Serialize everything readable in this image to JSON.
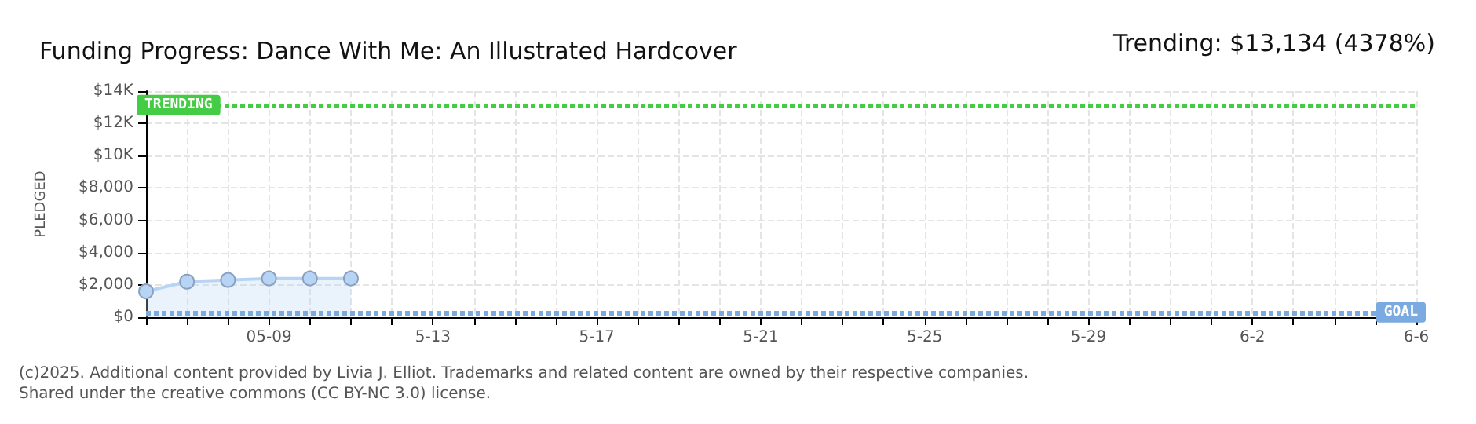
{
  "chart_data": {
    "type": "area",
    "title": "Funding Progress: Dance With Me: An Illustrated Hardcover",
    "ylabel": "PLEDGED",
    "annotations": [
      "Trending: $13,134 (4378%)",
      "(c)2025. Additional content provided by Livia J. Elliot. Trademarks and related content are owned by their respective companies.",
      "Shared under the creative commons (CC BY-NC 3.0) license."
    ],
    "x": [
      "--05-06",
      "--05-07",
      "--05-08",
      "--05-09",
      "--05-10",
      "--05-11"
    ],
    "series": [
      {
        "color": "#b8d4f4",
        "values": [
          1600,
          2200,
          2300,
          2400,
          2400,
          2400
        ]
      }
    ],
    "xlim": [
      "--05-06",
      "--06-06"
    ],
    "xticks": [
      {
        "value": "--05-06",
        "label": null
      },
      {
        "value": "--05-07",
        "label": null
      },
      {
        "value": "--05-08",
        "label": null
      },
      {
        "value": "--05-09",
        "label": "05-09"
      },
      {
        "value": "--05-10",
        "label": null
      },
      {
        "value": "--05-11",
        "label": null
      },
      {
        "value": "--05-12",
        "label": null
      },
      {
        "value": "--05-13",
        "label": "5-13"
      },
      {
        "value": "--05-14",
        "label": null
      },
      {
        "value": "--05-15",
        "label": null
      },
      {
        "value": "--05-16",
        "label": null
      },
      {
        "value": "--05-17",
        "label": "5-17"
      },
      {
        "value": "--05-18",
        "label": null
      },
      {
        "value": "--05-19",
        "label": null
      },
      {
        "value": "--05-20",
        "label": null
      },
      {
        "value": "--05-21",
        "label": "5-21"
      },
      {
        "value": "--05-22",
        "label": null
      },
      {
        "value": "--05-23",
        "label": null
      },
      {
        "value": "--05-24",
        "label": null
      },
      {
        "value": "--05-25",
        "label": "5-25"
      },
      {
        "value": "--05-26",
        "label": null
      },
      {
        "value": "--05-27",
        "label": null
      },
      {
        "value": "--05-28",
        "label": null
      },
      {
        "value": "--05-29",
        "label": "5-29"
      },
      {
        "value": "--05-30",
        "label": null
      },
      {
        "value": "--05-31",
        "label": null
      },
      {
        "value": "--06-01",
        "label": null
      },
      {
        "value": "--06-02",
        "label": "6-2"
      },
      {
        "value": "--06-03",
        "label": null
      },
      {
        "value": "--06-04",
        "label": null
      },
      {
        "value": "--06-05",
        "label": null
      },
      {
        "value": "--06-06",
        "label": "6-6"
      }
    ],
    "ylim": [
      0,
      14000
    ],
    "yticks": [
      {
        "value": 0,
        "label": "$0"
      },
      {
        "value": 2000,
        "label": "$2,000"
      },
      {
        "value": 4000,
        "label": "$4,000"
      },
      {
        "value": 6000,
        "label": "$6,000"
      },
      {
        "value": 8000,
        "label": "$8,000"
      },
      {
        "value": 10000,
        "label": "$10K"
      },
      {
        "value": 12000,
        "label": "$12K"
      },
      {
        "value": 14000,
        "label": "$14K"
      }
    ],
    "ref_lines": [
      {
        "axis": "y",
        "value": 13134,
        "label": "TRENDING",
        "color": "#44cc44",
        "line_style": "dotted"
      },
      {
        "axis": "y",
        "value": 300,
        "label": "GOAL",
        "color": "#7aaae0",
        "line_style": "dotted"
      }
    ],
    "grid": true,
    "marker": "circle"
  }
}
